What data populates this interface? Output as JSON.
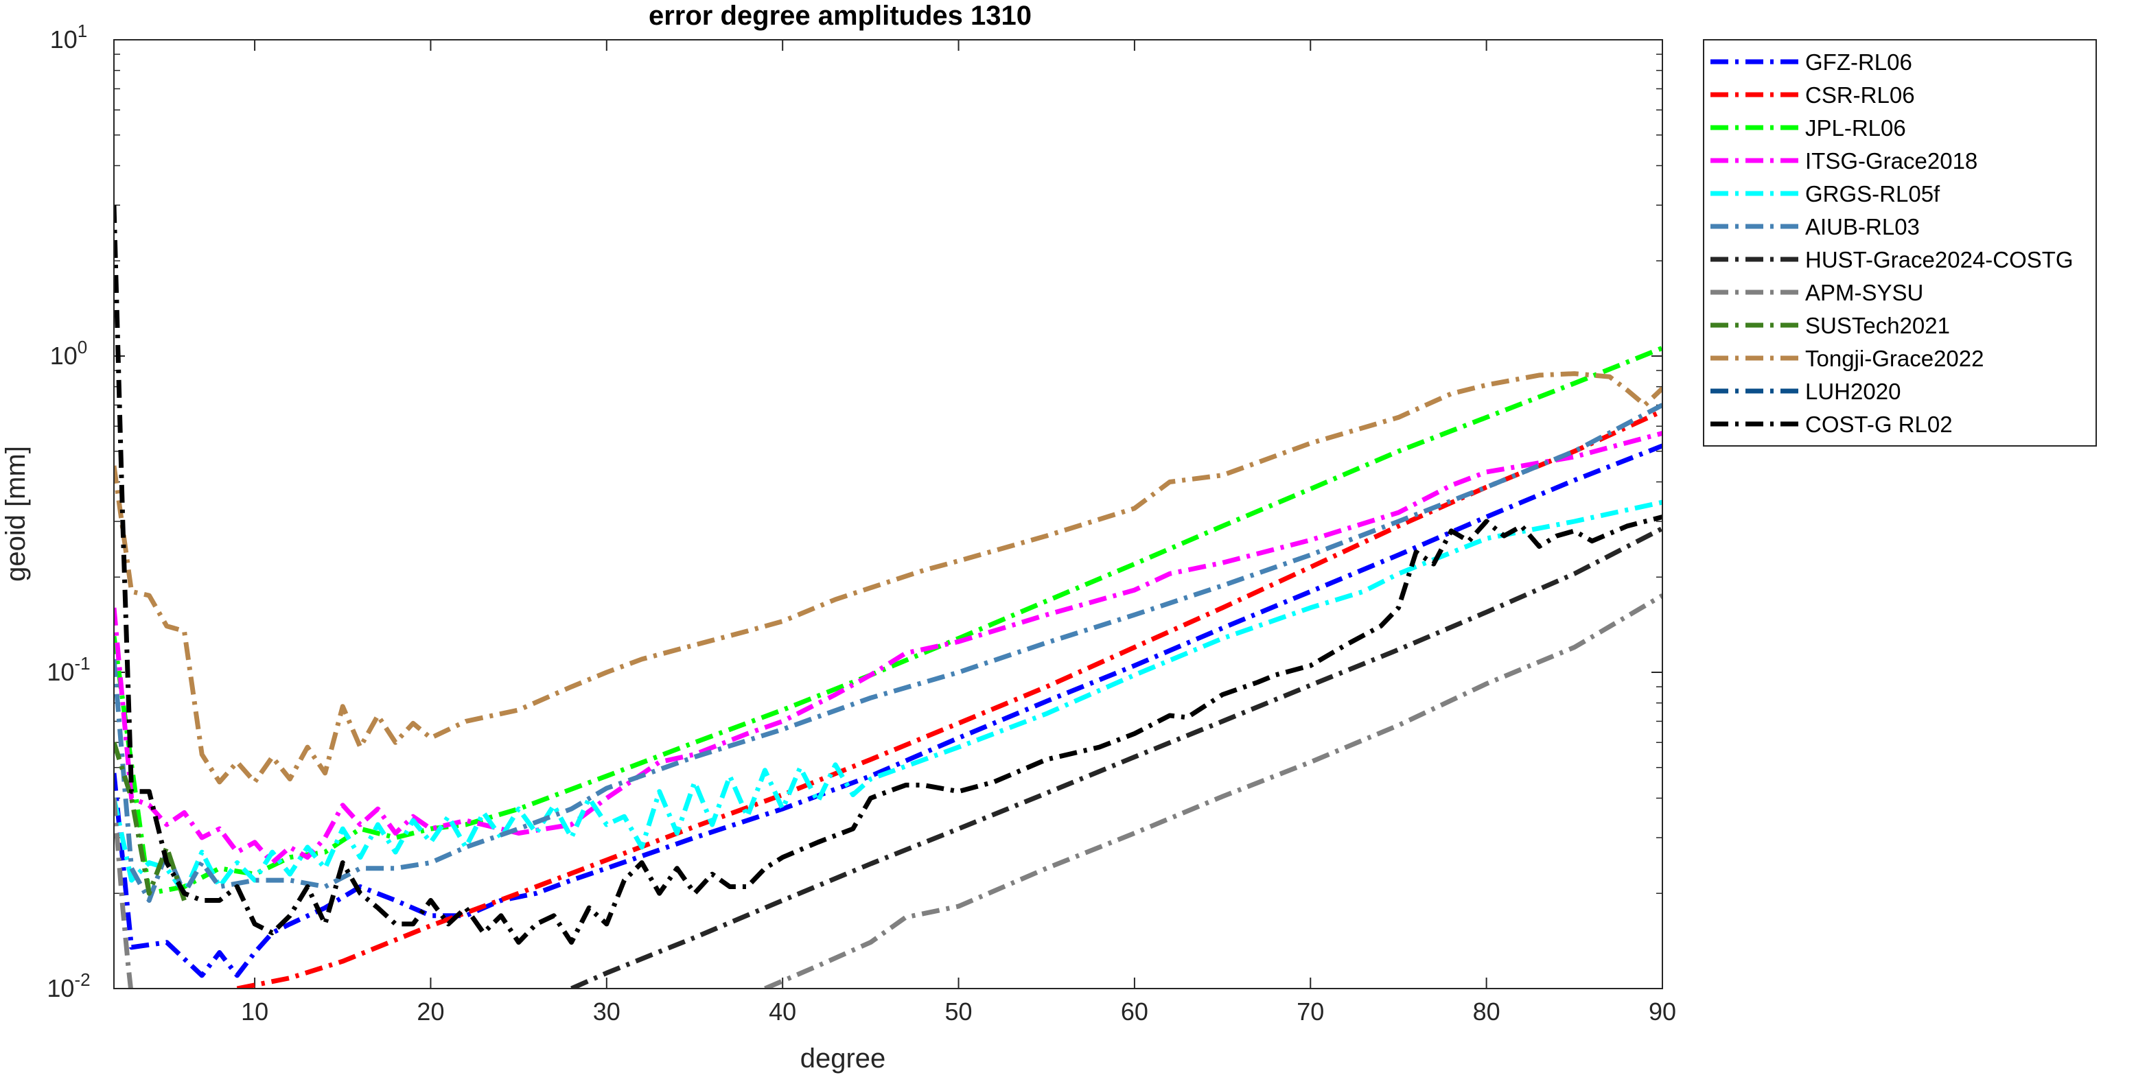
{
  "chart_data": {
    "type": "line",
    "title": "error degree amplitudes 1310",
    "xlabel": "degree",
    "ylabel": "geoid [mm]",
    "xlim": [
      2,
      90
    ],
    "ylim": [
      0.01,
      10
    ],
    "yscale": "log",
    "x_ticks": [
      10,
      20,
      30,
      40,
      50,
      60,
      70,
      80,
      90
    ],
    "y_ticks": [
      {
        "value": 0.01,
        "base": "10",
        "exp": "-2"
      },
      {
        "value": 0.1,
        "base": "10",
        "exp": "-1"
      },
      {
        "value": 1,
        "base": "10",
        "exp": "0"
      },
      {
        "value": 10,
        "base": "10",
        "exp": "1"
      }
    ],
    "grid": false,
    "legend_position": "outside-right-top",
    "series": [
      {
        "name": "GFZ-RL06",
        "color": "#0000ff",
        "dash": "dashdot",
        "x": [
          2,
          3,
          5,
          7,
          8,
          9,
          10,
          11,
          12,
          14,
          16,
          18,
          20,
          22,
          24,
          26,
          28,
          30,
          35,
          40,
          45,
          50,
          55,
          60,
          65,
          70,
          75,
          80,
          85,
          90
        ],
        "y": [
          0.048,
          0.0135,
          0.014,
          0.011,
          0.013,
          0.011,
          0.013,
          0.015,
          0.016,
          0.018,
          0.021,
          0.019,
          0.017,
          0.017,
          0.019,
          0.02,
          0.022,
          0.024,
          0.03,
          0.037,
          0.047,
          0.062,
          0.081,
          0.105,
          0.138,
          0.18,
          0.235,
          0.31,
          0.405,
          0.52
        ]
      },
      {
        "name": "CSR-RL06",
        "color": "#ff0000",
        "dash": "dashdot",
        "x": [
          9,
          12,
          15,
          20,
          25,
          30,
          35,
          40,
          45,
          50,
          55,
          60,
          65,
          70,
          75,
          80,
          85,
          90
        ],
        "y": [
          0.01,
          0.0108,
          0.0122,
          0.0158,
          0.02,
          0.0255,
          0.0325,
          0.041,
          0.053,
          0.069,
          0.09,
          0.12,
          0.16,
          0.215,
          0.29,
          0.385,
          0.5,
          0.67
        ]
      },
      {
        "name": "JPL-RL06",
        "color": "#00ff00",
        "dash": "dashdot",
        "x": [
          2,
          4,
          6,
          8,
          10,
          12,
          14,
          16,
          18,
          20,
          22,
          25,
          30,
          35,
          40,
          45,
          50,
          55,
          60,
          65,
          70,
          75,
          80,
          85,
          90
        ],
        "y": [
          0.13,
          0.02,
          0.021,
          0.024,
          0.023,
          0.026,
          0.027,
          0.032,
          0.03,
          0.032,
          0.033,
          0.037,
          0.047,
          0.06,
          0.076,
          0.098,
          0.128,
          0.168,
          0.22,
          0.29,
          0.38,
          0.5,
          0.64,
          0.82,
          1.06
        ]
      },
      {
        "name": "ITSG-Grace2018",
        "color": "#ff00ff",
        "dash": "dashdot",
        "x": [
          2,
          3,
          4,
          5,
          6,
          7,
          8,
          9,
          10,
          11,
          12,
          13,
          14,
          15,
          16,
          17,
          18,
          19,
          20,
          22,
          25,
          28,
          30,
          33,
          35,
          38,
          40,
          43,
          45,
          47,
          50,
          55,
          60,
          62,
          65,
          70,
          75,
          78,
          80,
          85,
          90
        ],
        "y": [
          0.16,
          0.04,
          0.038,
          0.033,
          0.036,
          0.03,
          0.032,
          0.027,
          0.029,
          0.025,
          0.028,
          0.026,
          0.03,
          0.038,
          0.033,
          0.037,
          0.031,
          0.035,
          0.032,
          0.034,
          0.031,
          0.033,
          0.04,
          0.052,
          0.055,
          0.064,
          0.07,
          0.085,
          0.098,
          0.115,
          0.125,
          0.152,
          0.182,
          0.205,
          0.222,
          0.262,
          0.32,
          0.39,
          0.43,
          0.48,
          0.57
        ]
      },
      {
        "name": "GRGS-RL05f",
        "color": "#00ffff",
        "dash": "dashdot",
        "x": [
          2,
          3,
          4,
          5,
          6,
          7,
          8,
          9,
          10,
          11,
          12,
          13,
          14,
          15,
          16,
          17,
          18,
          19,
          20,
          21,
          22,
          23,
          24,
          25,
          26,
          27,
          28,
          29,
          30,
          31,
          32,
          33,
          34,
          35,
          36,
          37,
          38,
          39,
          40,
          41,
          42,
          43,
          44,
          45,
          50,
          55,
          60,
          65,
          70,
          73,
          75,
          80,
          85,
          90
        ],
        "y": [
          0.04,
          0.022,
          0.025,
          0.024,
          0.02,
          0.027,
          0.021,
          0.025,
          0.022,
          0.027,
          0.023,
          0.028,
          0.024,
          0.032,
          0.026,
          0.033,
          0.027,
          0.034,
          0.029,
          0.035,
          0.028,
          0.036,
          0.03,
          0.037,
          0.031,
          0.038,
          0.03,
          0.04,
          0.033,
          0.035,
          0.028,
          0.042,
          0.031,
          0.045,
          0.033,
          0.047,
          0.035,
          0.049,
          0.037,
          0.05,
          0.039,
          0.051,
          0.041,
          0.046,
          0.058,
          0.074,
          0.098,
          0.128,
          0.16,
          0.18,
          0.205,
          0.265,
          0.3,
          0.345
        ]
      },
      {
        "name": "AIUB-RL03",
        "color": "#4682b4",
        "dash": "dashdot",
        "x": [
          2,
          3,
          4,
          5,
          6,
          7,
          8,
          10,
          12,
          14,
          16,
          18,
          20,
          22,
          25,
          28,
          30,
          35,
          40,
          45,
          50,
          55,
          60,
          65,
          70,
          75,
          80,
          85,
          90
        ],
        "y": [
          0.11,
          0.024,
          0.019,
          0.027,
          0.02,
          0.025,
          0.021,
          0.022,
          0.022,
          0.021,
          0.024,
          0.024,
          0.025,
          0.028,
          0.032,
          0.037,
          0.043,
          0.054,
          0.066,
          0.083,
          0.1,
          0.124,
          0.152,
          0.188,
          0.235,
          0.3,
          0.385,
          0.5,
          0.7
        ]
      },
      {
        "name": "HUST-Grace2024-COSTG",
        "color": "#262626",
        "dash": "dashdot",
        "x": [
          28,
          30,
          35,
          40,
          45,
          50,
          55,
          60,
          65,
          70,
          75,
          80,
          85,
          90
        ],
        "y": [
          0.01,
          0.0112,
          0.0145,
          0.019,
          0.0248,
          0.032,
          0.0415,
          0.054,
          0.07,
          0.091,
          0.118,
          0.155,
          0.205,
          0.285
        ]
      },
      {
        "name": "APM-SYSU",
        "color": "#808080",
        "dash": "dashdot",
        "x": [
          2,
          2.5,
          2.8,
          3
        ],
        "y": [
          0.04,
          0.018,
          0.012,
          0.0095
        ],
        "x2": [
          39,
          42,
          45,
          47,
          50,
          55,
          60,
          65,
          70,
          75,
          80,
          85,
          90
        ],
        "y2": [
          0.01,
          0.0118,
          0.014,
          0.0168,
          0.0182,
          0.024,
          0.031,
          0.0405,
          0.052,
          0.068,
          0.092,
          0.12,
          0.175
        ]
      },
      {
        "name": "SUSTech2021",
        "color": "#3f7f1f",
        "dash": "dashdot",
        "x": [
          2,
          3,
          4,
          5,
          6
        ],
        "y": [
          0.06,
          0.04,
          0.02,
          0.028,
          0.019
        ]
      },
      {
        "name": "Tongji-Grace2022",
        "color": "#b8864b",
        "dash": "dashdot",
        "x": [
          2,
          3,
          4,
          5,
          6,
          7,
          8,
          9,
          10,
          11,
          12,
          13,
          14,
          15,
          16,
          17,
          18,
          19,
          20,
          22,
          25,
          28,
          30,
          32,
          35,
          38,
          40,
          43,
          45,
          48,
          50,
          55,
          60,
          62,
          65,
          70,
          75,
          78,
          80,
          83,
          85,
          87,
          88,
          89,
          90
        ],
        "y": [
          0.45,
          0.18,
          0.175,
          0.14,
          0.135,
          0.055,
          0.045,
          0.052,
          0.045,
          0.054,
          0.046,
          0.058,
          0.048,
          0.078,
          0.058,
          0.073,
          0.06,
          0.069,
          0.062,
          0.07,
          0.076,
          0.09,
          0.1,
          0.11,
          0.122,
          0.135,
          0.145,
          0.17,
          0.185,
          0.21,
          0.225,
          0.27,
          0.33,
          0.4,
          0.42,
          0.53,
          0.64,
          0.76,
          0.81,
          0.87,
          0.88,
          0.86,
          0.78,
          0.7,
          0.79
        ]
      },
      {
        "name": "LUH2020",
        "color": "#0b4f8a",
        "dash": "dashdot",
        "x": [],
        "y": []
      },
      {
        "name": "COST-G RL02",
        "color": "#000000",
        "dash": "dashdot",
        "x": [
          2,
          2.5,
          3,
          4,
          5,
          6,
          7,
          8,
          9,
          10,
          11,
          12,
          13,
          14,
          15,
          16,
          17,
          18,
          19,
          20,
          21,
          22,
          23,
          24,
          25,
          26,
          27,
          28,
          29,
          30,
          31,
          32,
          33,
          34,
          35,
          36,
          37,
          38,
          39,
          40,
          42,
          44,
          45,
          46,
          47,
          48,
          50,
          52,
          55,
          58,
          60,
          62,
          63,
          65,
          67,
          68,
          70,
          72,
          74,
          75,
          76,
          77,
          78,
          79,
          80,
          81,
          82,
          83,
          84,
          85,
          86,
          88,
          90
        ],
        "y": [
          3.0,
          0.3,
          0.042,
          0.042,
          0.025,
          0.02,
          0.019,
          0.019,
          0.021,
          0.016,
          0.015,
          0.017,
          0.021,
          0.016,
          0.025,
          0.02,
          0.018,
          0.016,
          0.016,
          0.019,
          0.016,
          0.018,
          0.015,
          0.017,
          0.014,
          0.016,
          0.017,
          0.014,
          0.018,
          0.016,
          0.022,
          0.025,
          0.02,
          0.024,
          0.02,
          0.023,
          0.021,
          0.021,
          0.024,
          0.026,
          0.029,
          0.032,
          0.04,
          0.042,
          0.044,
          0.044,
          0.042,
          0.045,
          0.053,
          0.058,
          0.064,
          0.073,
          0.072,
          0.085,
          0.093,
          0.098,
          0.105,
          0.122,
          0.14,
          0.16,
          0.24,
          0.22,
          0.28,
          0.26,
          0.3,
          0.27,
          0.29,
          0.25,
          0.27,
          0.28,
          0.26,
          0.29,
          0.31
        ]
      }
    ]
  }
}
